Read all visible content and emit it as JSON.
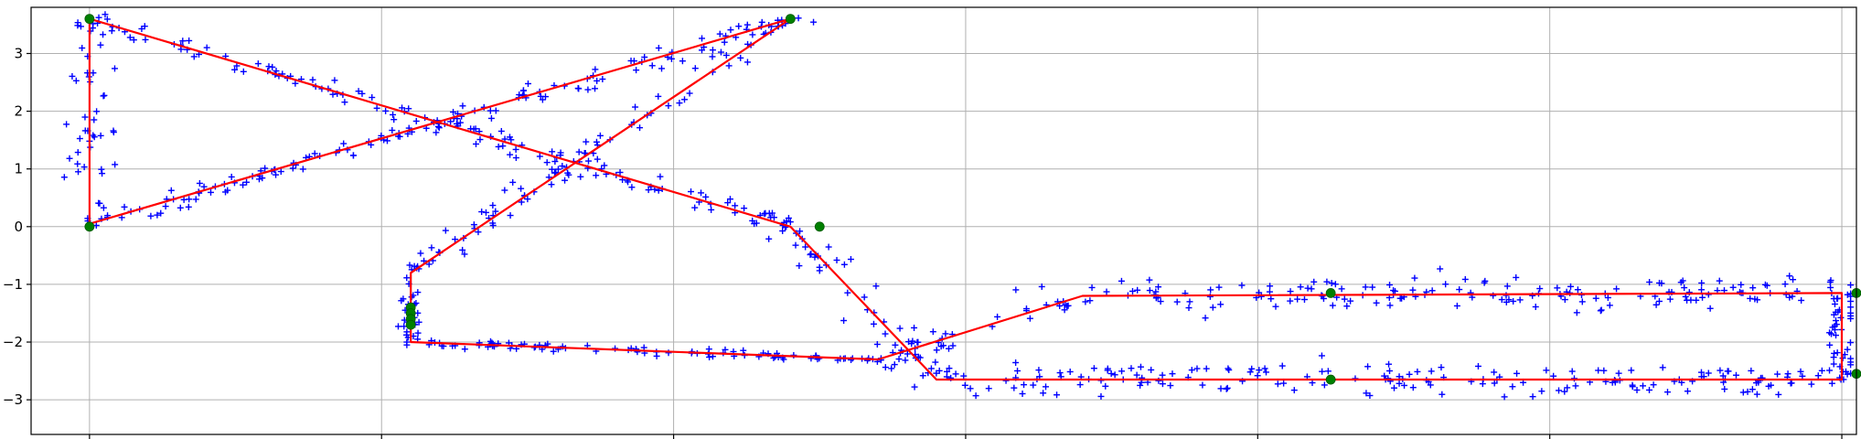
{
  "chart_data": {
    "type": "scatter",
    "title": "",
    "xlabel": "",
    "ylabel": "",
    "xlim": [
      -0.2,
      6.05
    ],
    "ylim": [
      -3.6,
      3.8
    ],
    "grid": true,
    "x_ticks": [
      0,
      1,
      2,
      3,
      4,
      5,
      6
    ],
    "x_tick_labels": [
      "",
      "",
      "",
      "",
      "",
      "",
      ""
    ],
    "y_ticks": [
      -3,
      -2,
      -1,
      0,
      1,
      2,
      3
    ],
    "y_tick_labels": [
      "−3",
      "−2",
      "−1",
      "0",
      "1",
      "2",
      "3"
    ],
    "colors": {
      "measurements": "#0000ff",
      "path": "#ff0000",
      "landmarks": "#008000",
      "grid": "#b0b0b0"
    },
    "series": [
      {
        "marker": "plus",
        "color": "#0000ff",
        "segments": [
          {
            "from": [
              0.0,
              0.0
            ],
            "to": [
              0.0,
              3.6
            ],
            "count": 45,
            "spread": 0.08
          },
          {
            "from": [
              0.0,
              3.6
            ],
            "to": [
              2.4,
              0.0
            ],
            "count": 140,
            "spread": 0.1
          },
          {
            "from": [
              0.0,
              0.0
            ],
            "to": [
              2.4,
              3.6
            ],
            "count": 140,
            "spread": 0.1
          },
          {
            "from": [
              2.4,
              3.6
            ],
            "to": [
              1.1,
              -0.8
            ],
            "count": 90,
            "spread": 0.09
          },
          {
            "from": [
              1.1,
              -0.8
            ],
            "to": [
              1.1,
              -2.0
            ],
            "count": 30,
            "spread": 0.05
          },
          {
            "from": [
              1.1,
              -2.0
            ],
            "to": [
              2.7,
              -2.3
            ],
            "count": 90,
            "spread": 0.07
          },
          {
            "from": [
              2.4,
              0.0
            ],
            "to": [
              2.9,
              -2.65
            ],
            "count": 55,
            "spread": 0.1
          },
          {
            "from": [
              2.7,
              -2.3
            ],
            "to": [
              3.4,
              -1.2
            ],
            "count": 30,
            "spread": 0.1
          },
          {
            "from": [
              3.4,
              -1.2
            ],
            "to": [
              6.0,
              -1.15
            ],
            "count": 170,
            "spread": 0.28
          },
          {
            "from": [
              2.9,
              -2.65
            ],
            "to": [
              6.0,
              -2.65
            ],
            "count": 190,
            "spread": 0.28
          },
          {
            "from": [
              6.0,
              -1.15
            ],
            "to": [
              6.0,
              -2.65
            ],
            "count": 40,
            "spread": 0.05
          }
        ]
      }
    ],
    "path": {
      "color": "#ff0000",
      "points": [
        [
          0.0,
          3.6
        ],
        [
          0.0,
          0.05
        ],
        [
          2.4,
          3.6
        ],
        [
          1.1,
          -0.8
        ],
        [
          1.1,
          -2.0
        ],
        [
          2.7,
          -2.3
        ],
        [
          3.4,
          -1.2
        ],
        [
          6.0,
          -1.15
        ],
        [
          6.0,
          -2.65
        ],
        [
          2.9,
          -2.65
        ],
        [
          2.4,
          0.0
        ],
        [
          0.0,
          3.6
        ]
      ]
    },
    "landmarks": {
      "color": "#008000",
      "points": [
        [
          0.0,
          3.6
        ],
        [
          0.0,
          0.0
        ],
        [
          2.4,
          3.6
        ],
        [
          2.5,
          0.0
        ],
        [
          1.1,
          -1.4
        ],
        [
          1.1,
          -1.5
        ],
        [
          1.1,
          -1.6
        ],
        [
          1.1,
          -1.7
        ],
        [
          4.25,
          -1.15
        ],
        [
          4.25,
          -2.65
        ],
        [
          6.05,
          -1.15
        ],
        [
          6.05,
          -2.55
        ]
      ]
    }
  }
}
